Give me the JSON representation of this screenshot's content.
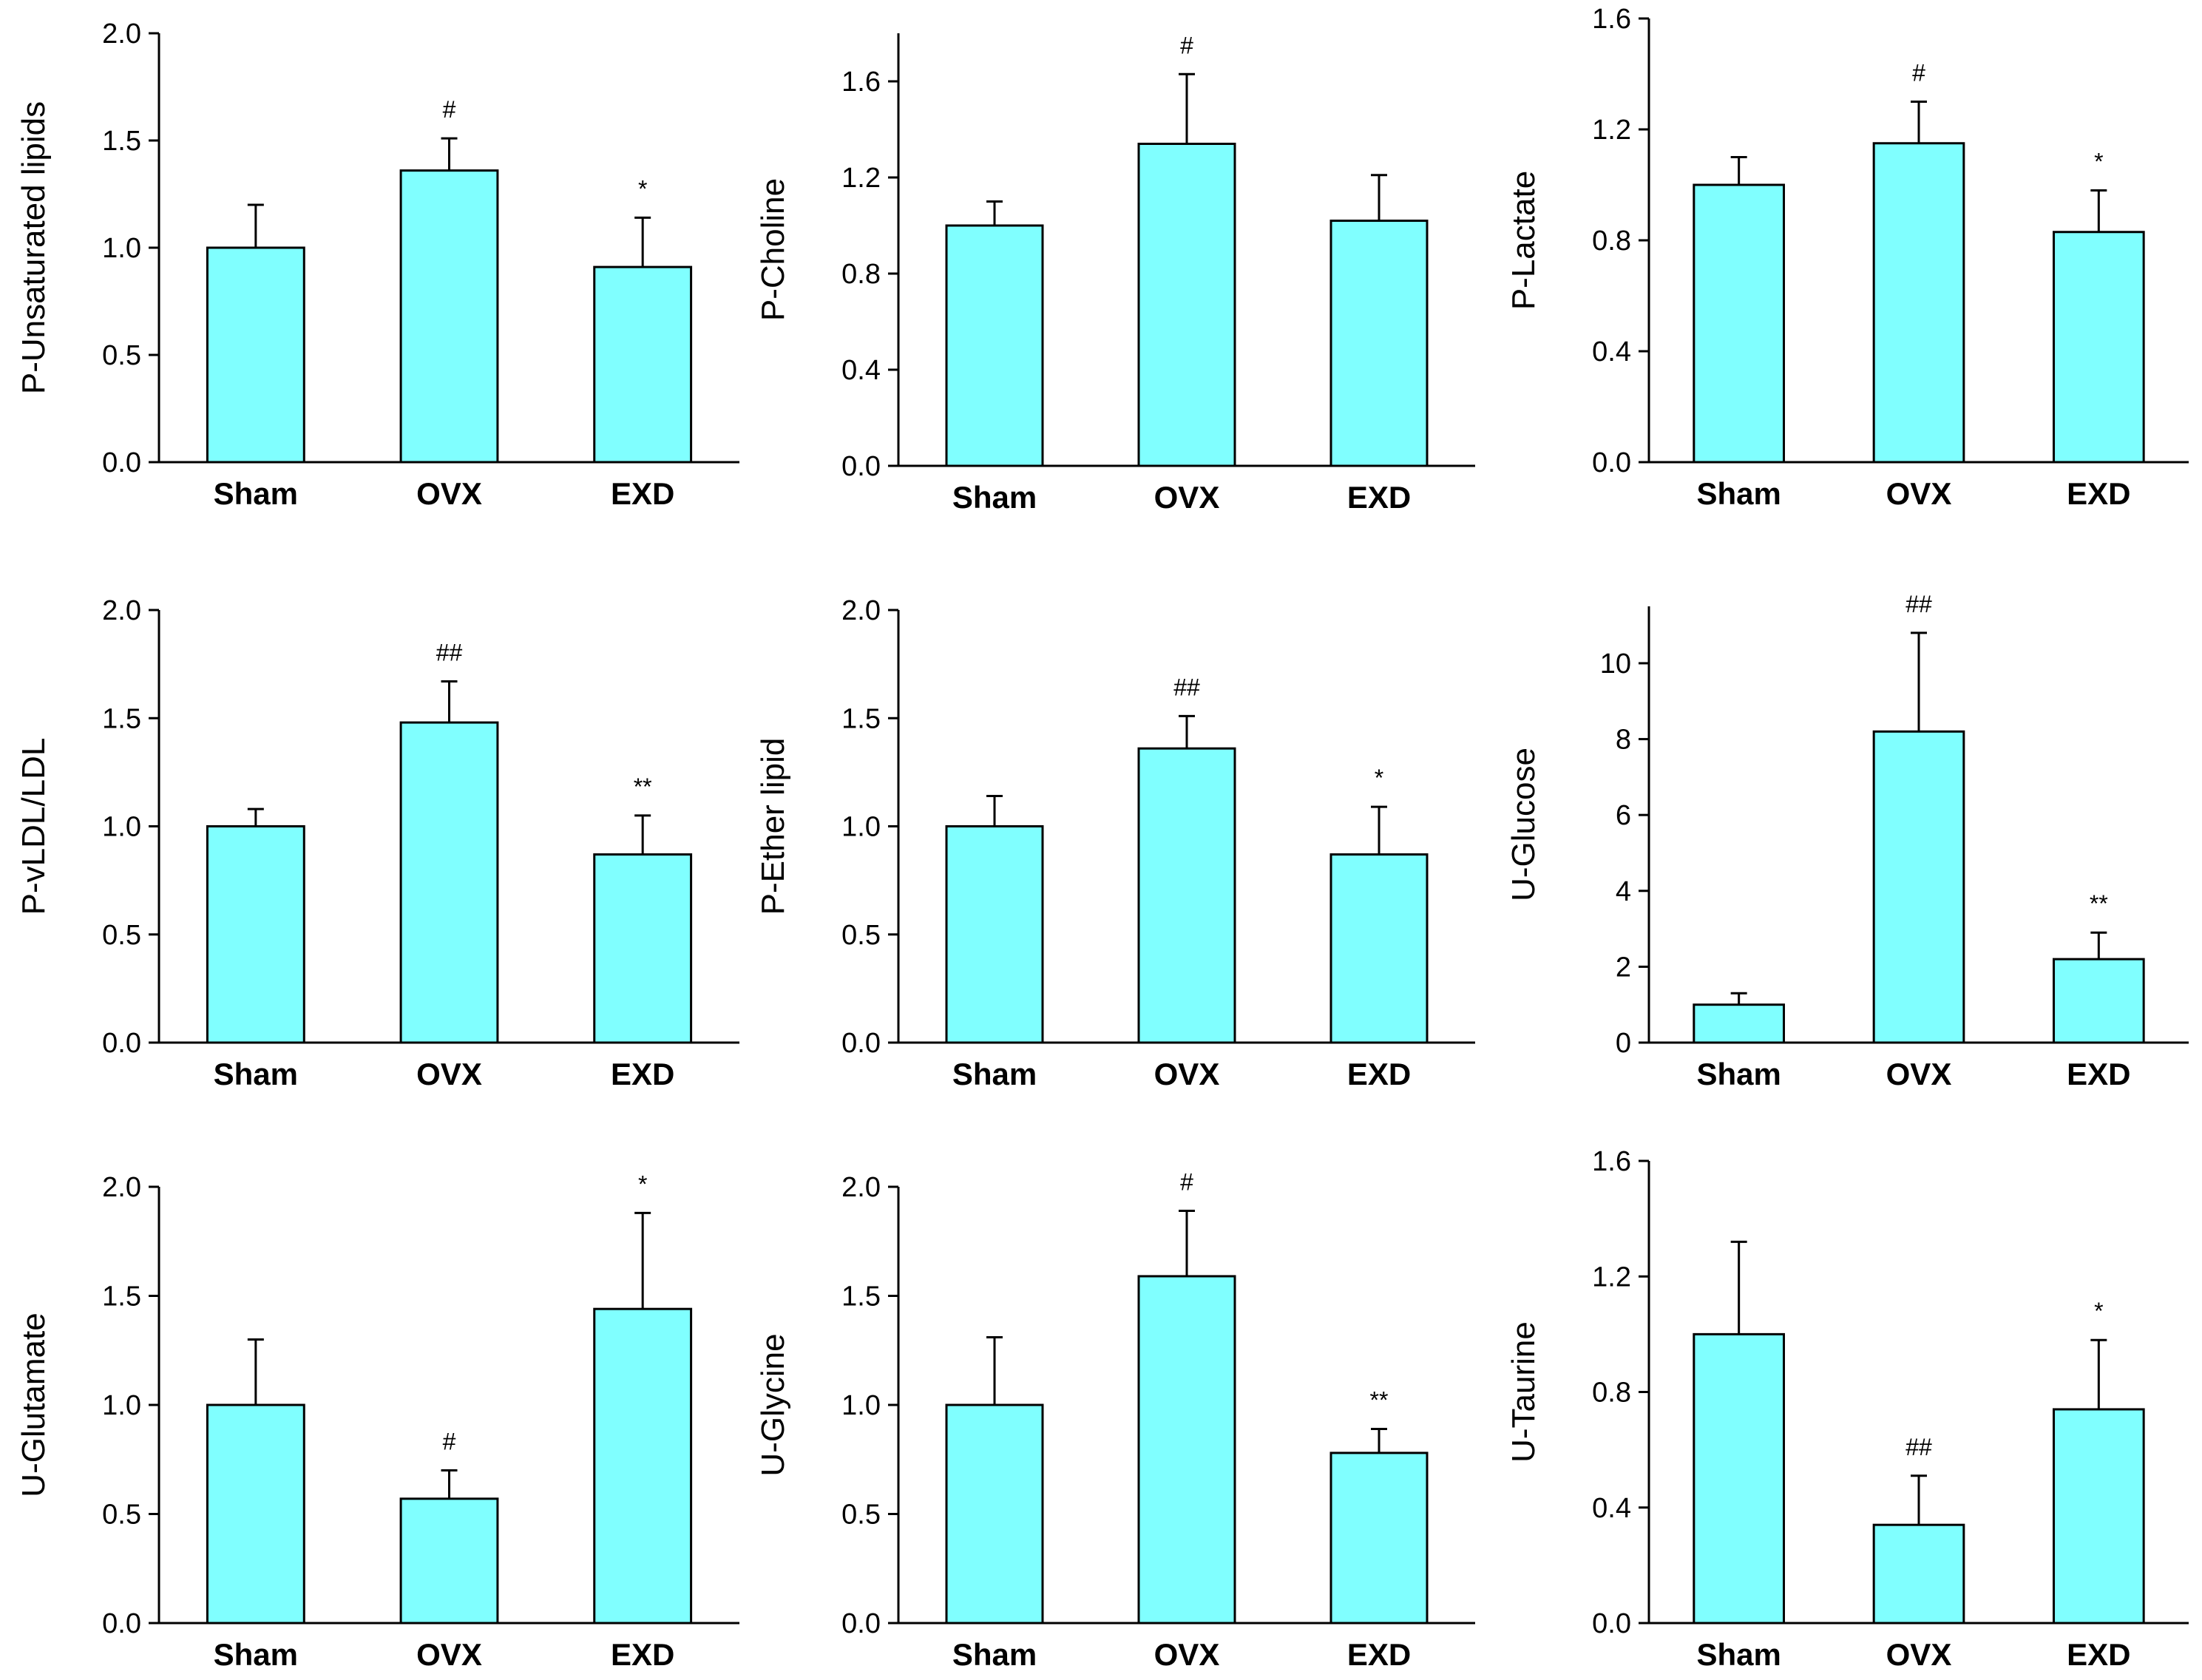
{
  "chart_data": [
    {
      "type": "bar",
      "ylabel": "P-Unsaturated lipids",
      "categories": [
        "Sham",
        "OVX",
        "EXD"
      ],
      "values": [
        1.0,
        1.36,
        0.91
      ],
      "errors": [
        0.2,
        0.15,
        0.23
      ],
      "annotations": [
        "",
        "#",
        "*"
      ],
      "ylim": [
        0,
        2.0
      ],
      "yticks": [
        0.0,
        0.5,
        1.0,
        1.5,
        2.0
      ],
      "ytick_labels": [
        "0.0",
        "0.5",
        "1.0",
        "1.5",
        "2.0"
      ],
      "colors": {
        "bar": "#80ffff"
      }
    },
    {
      "type": "bar",
      "ylabel": "P-Choline",
      "categories": [
        "Sham",
        "OVX",
        "EXD"
      ],
      "values": [
        1.0,
        1.34,
        1.02
      ],
      "errors": [
        0.1,
        0.29,
        0.19
      ],
      "annotations": [
        "",
        "#",
        ""
      ],
      "ylim": [
        0,
        1.8
      ],
      "yticks": [
        0.0,
        0.4,
        0.8,
        1.2,
        1.6
      ],
      "ytick_labels": [
        "0.0",
        "0.4",
        "0.8",
        "1.2",
        "1.6"
      ],
      "colors": {
        "bar": "#80ffff"
      }
    },
    {
      "type": "bar",
      "ylabel": "P-Lactate",
      "categories": [
        "Sham",
        "OVX",
        "EXD"
      ],
      "values": [
        1.0,
        1.15,
        0.83
      ],
      "errors": [
        0.1,
        0.15,
        0.15
      ],
      "annotations": [
        "",
        "#",
        "*"
      ],
      "ylim": [
        0,
        1.6
      ],
      "yticks": [
        0.0,
        0.4,
        0.8,
        1.2,
        1.6
      ],
      "ytick_labels": [
        "0.0",
        "0.4",
        "0.8",
        "1.2",
        "1.6"
      ],
      "colors": {
        "bar": "#80ffff"
      }
    },
    {
      "type": "bar",
      "ylabel": "P-vLDL/LDL",
      "categories": [
        "Sham",
        "OVX",
        "EXD"
      ],
      "values": [
        1.0,
        1.48,
        0.87
      ],
      "errors": [
        0.08,
        0.19,
        0.18
      ],
      "annotations": [
        "",
        "##",
        "**"
      ],
      "ylim": [
        0,
        2.0
      ],
      "yticks": [
        0.0,
        0.5,
        1.0,
        1.5,
        2.0
      ],
      "ytick_labels": [
        "0.0",
        "0.5",
        "1.0",
        "1.5",
        "2.0"
      ],
      "colors": {
        "bar": "#80ffff"
      }
    },
    {
      "type": "bar",
      "ylabel": "P-Ether lipid",
      "categories": [
        "Sham",
        "OVX",
        "EXD"
      ],
      "values": [
        1.0,
        1.36,
        0.87
      ],
      "errors": [
        0.14,
        0.15,
        0.22
      ],
      "annotations": [
        "",
        "##",
        "*"
      ],
      "ylim": [
        0,
        2.0
      ],
      "yticks": [
        0.0,
        0.5,
        1.0,
        1.5,
        2.0
      ],
      "ytick_labels": [
        "0.0",
        "0.5",
        "1.0",
        "1.5",
        "2.0"
      ],
      "colors": {
        "bar": "#80ffff"
      }
    },
    {
      "type": "bar",
      "ylabel": "U-Glucose",
      "categories": [
        "Sham",
        "OVX",
        "EXD"
      ],
      "values": [
        1.0,
        8.2,
        2.2
      ],
      "errors": [
        0.3,
        2.6,
        0.7
      ],
      "annotations": [
        "",
        "##",
        "**"
      ],
      "ylim": [
        0,
        11.5
      ],
      "yticks": [
        0,
        2,
        4,
        6,
        8,
        10
      ],
      "ytick_labels": [
        "0",
        "2",
        "4",
        "6",
        "8",
        "10"
      ],
      "colors": {
        "bar": "#80ffff"
      }
    },
    {
      "type": "bar",
      "ylabel": "U-Glutamate",
      "categories": [
        "Sham",
        "OVX",
        "EXD"
      ],
      "values": [
        1.0,
        0.57,
        1.44
      ],
      "errors": [
        0.3,
        0.13,
        0.44
      ],
      "annotations": [
        "",
        "#",
        "*"
      ],
      "ylim": [
        0,
        2.0
      ],
      "yticks": [
        0.0,
        0.5,
        1.0,
        1.5,
        2.0
      ],
      "ytick_labels": [
        "0.0",
        "0.5",
        "1.0",
        "1.5",
        "2.0"
      ],
      "colors": {
        "bar": "#80ffff"
      }
    },
    {
      "type": "bar",
      "ylabel": "U-Glycine",
      "categories": [
        "Sham",
        "OVX",
        "EXD"
      ],
      "values": [
        1.0,
        1.59,
        0.78
      ],
      "errors": [
        0.31,
        0.3,
        0.11
      ],
      "annotations": [
        "",
        "#",
        "**"
      ],
      "ylim": [
        0,
        2.0
      ],
      "yticks": [
        0.0,
        0.5,
        1.0,
        1.5,
        2.0
      ],
      "ytick_labels": [
        "0.0",
        "0.5",
        "1.0",
        "1.5",
        "2.0"
      ],
      "colors": {
        "bar": "#80ffff"
      }
    },
    {
      "type": "bar",
      "ylabel": "U-Taurine",
      "categories": [
        "Sham",
        "OVX",
        "EXD"
      ],
      "values": [
        1.0,
        0.34,
        0.74
      ],
      "errors": [
        0.32,
        0.17,
        0.24
      ],
      "annotations": [
        "",
        "##",
        "*"
      ],
      "ylim": [
        0,
        1.6
      ],
      "yticks": [
        0.0,
        0.4,
        0.8,
        1.2,
        1.6
      ],
      "ytick_labels": [
        "0.0",
        "0.4",
        "0.8",
        "1.2",
        "1.6"
      ],
      "colors": {
        "bar": "#80ffff"
      }
    }
  ]
}
